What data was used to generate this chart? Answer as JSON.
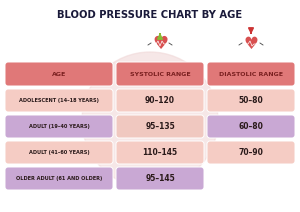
{
  "title": "BLOOD PRESSURE CHART BY AGE",
  "columns": [
    "AGE",
    "SYSTOLIC RANGE",
    "DIASTOLIC RANGE"
  ],
  "rows": [
    {
      "age": "ADOLESCENT (14–18 YEARS)",
      "systolic": "90–120",
      "diastolic": "50–80"
    },
    {
      "age": "ADULT (19–40 YEARS)",
      "systolic": "95–135",
      "diastolic": "60–80"
    },
    {
      "age": "ADULT (41–60 YEARS)",
      "systolic": "110–145",
      "diastolic": "70–90"
    },
    {
      "age": "OLDER ADULT (61 AND OLDER)",
      "systolic": "95–145",
      "diastolic": ""
    }
  ],
  "header_color": "#e07878",
  "row_colors_age": [
    "#f5ccc4",
    "#c9a8d4",
    "#f5ccc4",
    "#c9a8d4"
  ],
  "row_colors_sys": [
    "#f5ccc4",
    "#f0c8c0",
    "#f5ccc4",
    "#c9a8d4"
  ],
  "row_colors_dia": [
    "#f5ccc4",
    "#c9a8d4",
    "#f5ccc4",
    ""
  ],
  "bg_color": "#ffffff",
  "title_color": "#1a1a3a",
  "header_text_color": "#7a2020",
  "row_text_color": "#2a1a1a",
  "watermark_color": "#f0d8d8",
  "arrow_up_color": "#88bb33",
  "arrow_down_color": "#cc3333",
  "heart_color": "#d85050",
  "heart_outline_color": "#cc4444"
}
